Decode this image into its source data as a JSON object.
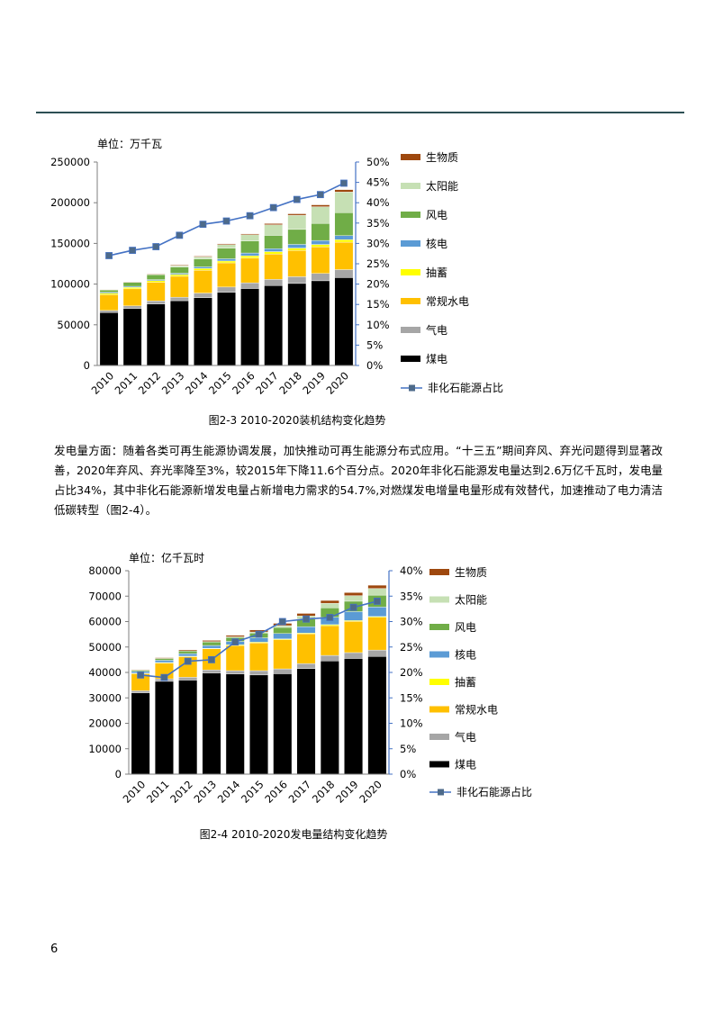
{
  "page": {
    "paragraph": "发电量方面：随着各类可再生能源协调发展，加快推动可再生能源分布式应用。“十三五”期间弃风、弃光问题得到显著改善，2020年弃风、弃光率降至3%，较2015年下降11.6个百分点。2020年非化石能源发电量达到2.6万亿千瓦时，发电量占比34%，其中非化石能源新增发电量占新增电力需求的54.7%,对燃煤发电增量电量形成有效替代，加速推动了电力清洁低碳转型（图2-4）。",
    "page_number": "6"
  },
  "chart_data": [
    {
      "type": "bar",
      "stacked": true,
      "caption": "图2-3 2010-2020装机结构变化趋势",
      "unit_label": "单位：万千瓦",
      "categories": [
        "2010",
        "2011",
        "2012",
        "2013",
        "2014",
        "2015",
        "2016",
        "2017",
        "2018",
        "2019",
        "2020"
      ],
      "ylim": [
        0,
        250000
      ],
      "yticks": [
        0,
        50000,
        100000,
        150000,
        200000,
        250000
      ],
      "y2lim": [
        0,
        50
      ],
      "y2ticks": [
        "0%",
        "5%",
        "10%",
        "15%",
        "20%",
        "25%",
        "30%",
        "35%",
        "40%",
        "45%",
        "50%"
      ],
      "series": [
        {
          "name": "煤电",
          "color": "#000000",
          "values": [
            65000,
            70000,
            75500,
            79600,
            83300,
            89800,
            94600,
            98200,
            100800,
            104100,
            108000
          ]
        },
        {
          "name": "气电",
          "color": "#a6a6a6",
          "values": [
            2600,
            3200,
            3800,
            4300,
            5700,
            6600,
            7000,
            7600,
            8300,
            9000,
            9800
          ]
        },
        {
          "name": "常规水电",
          "color": "#ffc000",
          "values": [
            19400,
            21000,
            22900,
            25700,
            28000,
            29700,
            30500,
            31200,
            32200,
            32600,
            33700
          ]
        },
        {
          "name": "抽蓄",
          "color": "#ffff00",
          "values": [
            1700,
            1800,
            2000,
            2200,
            2200,
            2300,
            2700,
            2900,
            3000,
            3000,
            3100
          ]
        },
        {
          "name": "核电",
          "color": "#5b9bd5",
          "values": [
            1100,
            1300,
            1300,
            1500,
            2000,
            2700,
            3400,
            3600,
            4500,
            4900,
            5000
          ]
        },
        {
          "name": "风电",
          "color": "#70ad47",
          "values": [
            3000,
            4700,
            6100,
            7600,
            9700,
            13100,
            14700,
            16400,
            18400,
            21000,
            28200
          ]
        },
        {
          "name": "太阳能",
          "color": "#c6e0b4",
          "values": [
            30,
            200,
            300,
            1600,
            2500,
            4300,
            7700,
            13000,
            17400,
            20500,
            25300
          ]
        },
        {
          "name": "生物质",
          "color": "#9e480e",
          "values": [
            500,
            600,
            800,
            900,
            1000,
            1100,
            1200,
            1500,
            1800,
            2300,
            3000
          ]
        }
      ],
      "line": {
        "name": "非化石能源占比",
        "color": "#4472c4",
        "marker_color": "#4d6a8a",
        "values": [
          27,
          28.3,
          29.2,
          32,
          34.7,
          35.5,
          36.8,
          38.8,
          40.8,
          42,
          44.8
        ]
      }
    },
    {
      "type": "bar",
      "stacked": true,
      "caption": "图2-4 2010-2020发电量结构变化趋势",
      "unit_label": "单位：亿千瓦时",
      "categories": [
        "2010",
        "2011",
        "2012",
        "2013",
        "2014",
        "2015",
        "2016",
        "2017",
        "2018",
        "2019",
        "2020"
      ],
      "ylim": [
        0,
        80000
      ],
      "yticks": [
        0,
        10000,
        20000,
        30000,
        40000,
        50000,
        60000,
        70000,
        80000
      ],
      "y2lim": [
        0,
        40
      ],
      "y2ticks": [
        "0%",
        "5%",
        "10%",
        "15%",
        "20%",
        "25%",
        "30%",
        "35%",
        "40%"
      ],
      "series": [
        {
          "name": "煤电",
          "color": "#000000",
          "values": [
            32000,
            36500,
            37000,
            39800,
            39400,
            39000,
            39500,
            41500,
            44500,
            45500,
            46300
          ]
        },
        {
          "name": "气电",
          "color": "#a6a6a6",
          "values": [
            800,
            1000,
            1100,
            1200,
            1300,
            1700,
            1900,
            2000,
            2200,
            2300,
            2500
          ]
        },
        {
          "name": "常规水电",
          "color": "#ffc000",
          "values": [
            6700,
            6200,
            8100,
            8300,
            9900,
            10900,
            11500,
            11700,
            11700,
            12300,
            12900
          ]
        },
        {
          "name": "抽蓄",
          "color": "#ffff00",
          "values": [
            200,
            200,
            200,
            200,
            300,
            300,
            300,
            300,
            400,
            300,
            300
          ]
        },
        {
          "name": "核电",
          "color": "#5b9bd5",
          "values": [
            700,
            900,
            1000,
            1100,
            1300,
            1700,
            2100,
            2500,
            2900,
            3500,
            3700
          ]
        },
        {
          "name": "风电",
          "color": "#70ad47",
          "values": [
            500,
            700,
            1000,
            1400,
            1600,
            1900,
            2400,
            3000,
            3700,
            4100,
            4700
          ]
        },
        {
          "name": "太阳能",
          "color": "#c6e0b4",
          "values": [
            10,
            10,
            40,
            100,
            200,
            400,
            700,
            1200,
            1800,
            2200,
            2600
          ]
        },
        {
          "name": "生物质",
          "color": "#9e480e",
          "values": [
            200,
            300,
            400,
            500,
            600,
            800,
            900,
            1000,
            1100,
            1200,
            1300
          ]
        }
      ],
      "line": {
        "name": "非化石能源占比",
        "color": "#4472c4",
        "marker_color": "#4d6a8a",
        "values": [
          19.5,
          19,
          22.2,
          22.5,
          26,
          27.5,
          30,
          30.5,
          30.8,
          32.8,
          34
        ]
      }
    }
  ]
}
